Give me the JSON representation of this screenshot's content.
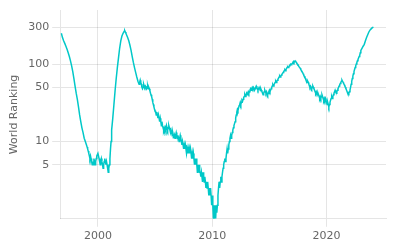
{
  "chart_data": {
    "type": "line",
    "ylabel": "World Ranking",
    "color": "#00C8C8",
    "log": "y",
    "grid": true,
    "xlim": [
      1996.7,
      2025.2
    ],
    "ylim": [
      1,
      500
    ],
    "xticks": [
      2000,
      2010,
      2020
    ],
    "yticks": [
      5,
      10,
      50,
      100,
      300
    ],
    "x": [
      1996.8,
      1996.9,
      1997.0,
      1997.1,
      1997.2,
      1997.3,
      1997.4,
      1997.5,
      1997.6,
      1997.7,
      1997.8,
      1997.9,
      1998.0,
      1998.1,
      1998.2,
      1998.3,
      1998.4,
      1998.5,
      1998.6,
      1998.7,
      1998.8,
      1998.9,
      1999.0,
      1999.05,
      1999.1,
      1999.15,
      1999.2,
      1999.25,
      1999.3,
      1999.35,
      1999.4,
      1999.45,
      1999.5,
      1999.55,
      1999.6,
      1999.65,
      1999.7,
      1999.75,
      1999.8,
      1999.85,
      1999.9,
      2000.0,
      2000.05,
      2000.1,
      2000.15,
      2000.2,
      2000.25,
      2000.3,
      2000.35,
      2000.4,
      2000.45,
      2000.5,
      2000.55,
      2000.6,
      2000.65,
      2000.7,
      2000.75,
      2000.8,
      2000.85,
      2000.9,
      2000.95,
      2001.0,
      2001.05,
      2001.1,
      2001.15,
      2001.2,
      2001.3,
      2001.4,
      2001.5,
      2001.6,
      2001.7,
      2001.8,
      2001.9,
      2002.0,
      2002.1,
      2002.2,
      2002.3,
      2002.35,
      2002.4,
      2002.45,
      2002.5,
      2002.6,
      2002.7,
      2002.8,
      2002.9,
      2003.0,
      2003.1,
      2003.2,
      2003.3,
      2003.4,
      2003.5,
      2003.6,
      2003.65,
      2003.7,
      2003.75,
      2003.8,
      2003.85,
      2003.9,
      2003.95,
      2004.0,
      2004.05,
      2004.1,
      2004.15,
      2004.2,
      2004.25,
      2004.3,
      2004.35,
      2004.4,
      2004.45,
      2004.5,
      2004.55,
      2004.6,
      2004.65,
      2004.7,
      2004.75,
      2004.8,
      2004.85,
      2004.9,
      2004.95,
      2005.0,
      2005.05,
      2005.1,
      2005.15,
      2005.2,
      2005.25,
      2005.3,
      2005.35,
      2005.4,
      2005.45,
      2005.5,
      2005.55,
      2005.6,
      2005.65,
      2005.7,
      2005.75,
      2005.8,
      2005.85,
      2005.9,
      2005.95,
      2006.0,
      2006.05,
      2006.1,
      2006.15,
      2006.2,
      2006.25,
      2006.3,
      2006.35,
      2006.4,
      2006.45,
      2006.5,
      2006.55,
      2006.6,
      2006.65,
      2006.7,
      2006.75,
      2006.8,
      2006.85,
      2006.9,
      2006.95,
      2007.0,
      2007.05,
      2007.1,
      2007.15,
      2007.2,
      2007.25,
      2007.3,
      2007.35,
      2007.4,
      2007.45,
      2007.5,
      2007.55,
      2007.6,
      2007.65,
      2007.7,
      2007.75,
      2007.8,
      2007.85,
      2007.9,
      2007.95,
      2008.0,
      2008.05,
      2008.1,
      2008.15,
      2008.2,
      2008.25,
      2008.3,
      2008.35,
      2008.4,
      2008.45,
      2008.5,
      2008.55,
      2008.6,
      2008.65,
      2008.7,
      2008.75,
      2008.8,
      2008.85,
      2008.9,
      2008.95,
      2009.0,
      2009.05,
      2009.1,
      2009.15,
      2009.2,
      2009.25,
      2009.3,
      2009.35,
      2009.4,
      2009.45,
      2009.5,
      2009.55,
      2009.6,
      2009.65,
      2009.7,
      2009.75,
      2009.8,
      2009.85,
      2009.9,
      2009.95,
      2010.0,
      2010.05,
      2010.1,
      2010.15,
      2010.2,
      2010.25,
      2010.3,
      2010.35,
      2010.4,
      2010.45,
      2010.5,
      2010.55,
      2010.6,
      2010.65,
      2010.7,
      2010.75,
      2010.8,
      2010.85,
      2010.9,
      2010.95,
      2011.0,
      2011.05,
      2011.1,
      2011.15,
      2011.2,
      2011.25,
      2011.3,
      2011.35,
      2011.4,
      2011.45,
      2011.5,
      2011.55,
      2011.6,
      2011.65,
      2011.7,
      2011.75,
      2011.8,
      2011.85,
      2011.9,
      2011.95,
      2012.0,
      2012.05,
      2012.1,
      2012.15,
      2012.2,
      2012.25,
      2012.3,
      2012.35,
      2012.4,
      2012.45,
      2012.5,
      2012.55,
      2012.6,
      2012.65,
      2012.7,
      2012.75,
      2012.8,
      2012.85,
      2012.9,
      2012.95,
      2013.0,
      2013.05,
      2013.1,
      2013.15,
      2013.2,
      2013.25,
      2013.3,
      2013.35,
      2013.4,
      2013.45,
      2013.5,
      2013.55,
      2013.6,
      2013.65,
      2013.7,
      2013.75,
      2013.8,
      2013.85,
      2013.9,
      2013.95,
      2014.0,
      2014.05,
      2014.1,
      2014.15,
      2014.2,
      2014.25,
      2014.3,
      2014.35,
      2014.4,
      2014.45,
      2014.5,
      2014.55,
      2014.6,
      2014.65,
      2014.7,
      2014.75,
      2014.8,
      2014.85,
      2014.9,
      2014.95,
      2015.0,
      2015.05,
      2015.1,
      2015.15,
      2015.2,
      2015.25,
      2015.3,
      2015.35,
      2015.4,
      2015.45,
      2015.5,
      2015.55,
      2015.6,
      2015.65,
      2015.7,
      2015.75,
      2015.8,
      2015.85,
      2015.9,
      2015.95,
      2016.0,
      2016.05,
      2016.1,
      2016.15,
      2016.2,
      2016.25,
      2016.3,
      2016.35,
      2016.4,
      2016.45,
      2016.5,
      2016.55,
      2016.6,
      2016.65,
      2016.7,
      2016.75,
      2016.8,
      2016.85,
      2016.9,
      2016.95,
      2017.0,
      2017.05,
      2017.1,
      2017.15,
      2017.2,
      2017.25,
      2017.3,
      2017.35,
      2017.4,
      2017.45,
      2017.5,
      2017.55,
      2017.6,
      2017.65,
      2017.7,
      2017.75,
      2017.8,
      2017.85,
      2017.9,
      2017.95,
      2018.0,
      2018.05,
      2018.1,
      2018.15,
      2018.2,
      2018.25,
      2018.3,
      2018.35,
      2018.4,
      2018.45,
      2018.5,
      2018.55,
      2018.6,
      2018.65,
      2018.7,
      2018.75,
      2018.8,
      2018.85,
      2018.9,
      2018.95,
      2019.0,
      2019.05,
      2019.1,
      2019.15,
      2019.2,
      2019.25,
      2019.3,
      2019.35,
      2019.4,
      2019.45,
      2019.5,
      2019.55,
      2019.6,
      2019.65,
      2019.7,
      2019.75,
      2019.8,
      2019.85,
      2019.9,
      2019.95,
      2020.0,
      2020.05,
      2020.1,
      2020.15,
      2020.2,
      2020.25,
      2020.3,
      2020.35,
      2020.4,
      2020.45,
      2020.5,
      2020.55,
      2020.6,
      2020.65,
      2020.7,
      2020.75,
      2020.8,
      2020.85,
      2020.9,
      2020.95,
      2021.0,
      2021.05,
      2021.1,
      2021.15,
      2021.2,
      2021.25,
      2021.3,
      2021.35,
      2021.4,
      2021.45,
      2021.5,
      2021.55,
      2021.6,
      2021.65,
      2021.7,
      2021.75,
      2021.8,
      2021.85,
      2021.9,
      2021.95,
      2022.0,
      2022.05,
      2022.1,
      2022.15,
      2022.2,
      2022.25,
      2022.3,
      2022.35,
      2022.4,
      2022.45,
      2022.5,
      2022.55,
      2022.6,
      2022.65,
      2022.7,
      2022.75,
      2022.8,
      2022.85,
      2022.9,
      2022.95,
      2023.0,
      2023.1,
      2023.2,
      2023.3,
      2023.4,
      2023.5,
      2023.6,
      2023.7,
      2023.8,
      2023.9,
      2024.0,
      2024.1
    ],
    "values": [
      250,
      220,
      200,
      185,
      170,
      155,
      140,
      125,
      110,
      95,
      80,
      65,
      52,
      42,
      35,
      28,
      22,
      18,
      15,
      13,
      11,
      10,
      9,
      8.5,
      8,
      7.5,
      7,
      6.5,
      6,
      6.5,
      6,
      5.5,
      5,
      5.5,
      5,
      6,
      5.5,
      5,
      5.5,
      6,
      6.5,
      7,
      6.5,
      6,
      5.5,
      5,
      5.5,
      6,
      5.5,
      5,
      4.5,
      5,
      5.5,
      6,
      5.5,
      5,
      5.5,
      5,
      4.5,
      4,
      4.5,
      5,
      6,
      8,
      10,
      14,
      20,
      30,
      45,
      65,
      90,
      120,
      160,
      200,
      230,
      250,
      265,
      270,
      260,
      250,
      240,
      220,
      200,
      175,
      150,
      125,
      105,
      90,
      78,
      68,
      60,
      55,
      58,
      62,
      58,
      55,
      50,
      48,
      50,
      55,
      52,
      50,
      52,
      50,
      48,
      50,
      52,
      48,
      50,
      48,
      45,
      42,
      40,
      38,
      35,
      32,
      30,
      28,
      26,
      25,
      24,
      22,
      24,
      22,
      20,
      22,
      20,
      18,
      20,
      18,
      16,
      18,
      16,
      15,
      14,
      15,
      14,
      15,
      14,
      16,
      15,
      14,
      15,
      16,
      15,
      14,
      13,
      14,
      13,
      12,
      13,
      12,
      11,
      12,
      11,
      12,
      13,
      12,
      11,
      12,
      11,
      10,
      11,
      12,
      11,
      10,
      9,
      10,
      9,
      8,
      9,
      8,
      9,
      8,
      7,
      8,
      7,
      8,
      7,
      8,
      7,
      8,
      7,
      6,
      7,
      6,
      7,
      6,
      5,
      6,
      5,
      6,
      5,
      4,
      5,
      4,
      5,
      4,
      4,
      3.5,
      4,
      3.5,
      3,
      4,
      3.5,
      3,
      3.5,
      3,
      2.5,
      3,
      2.5,
      3,
      2.5,
      2,
      2.5,
      2,
      2.5,
      2,
      1.5,
      2,
      1.5,
      1,
      1.5,
      1,
      1.5,
      1,
      1.5,
      1.2,
      1.5,
      2,
      2.5,
      3,
      2.5,
      3,
      3.5,
      3,
      3.5,
      4,
      4.5,
      5,
      5.5,
      6,
      5.5,
      6,
      7,
      8,
      7,
      8,
      9,
      10,
      11,
      12,
      11,
      12,
      13,
      14,
      15,
      16,
      17,
      18,
      20,
      22,
      24,
      26,
      25,
      27,
      29,
      30,
      32,
      30,
      32,
      34,
      33,
      35,
      37,
      38,
      40,
      38,
      40,
      42,
      40,
      42,
      44,
      42,
      44,
      46,
      48,
      46,
      48,
      50,
      48,
      50,
      48,
      46,
      48,
      50,
      52,
      50,
      48,
      46,
      48,
      50,
      48,
      46,
      48,
      46,
      44,
      42,
      40,
      42,
      44,
      46,
      44,
      42,
      44,
      42,
      40,
      42,
      44,
      46,
      44,
      46,
      48,
      50,
      52,
      54,
      52,
      54,
      56,
      58,
      60,
      58,
      60,
      62,
      64,
      66,
      68,
      70,
      68,
      70,
      72,
      74,
      76,
      78,
      80,
      82,
      84,
      82,
      85,
      88,
      90,
      92,
      90,
      92,
      95,
      98,
      100,
      98,
      100,
      102,
      105,
      108,
      105,
      108,
      110,
      108,
      105,
      102,
      100,
      98,
      95,
      92,
      90,
      88,
      85,
      82,
      80,
      78,
      75,
      72,
      70,
      68,
      65,
      62,
      60,
      58,
      60,
      58,
      55,
      52,
      50,
      52,
      50,
      48,
      50,
      52,
      50,
      48,
      46,
      44,
      42,
      44,
      42,
      40,
      42,
      40,
      38,
      36,
      38,
      36,
      38,
      40,
      38,
      36,
      34,
      36,
      34,
      36,
      34,
      32,
      30,
      32,
      30,
      28,
      30,
      32,
      34,
      36,
      38,
      36,
      38,
      40,
      42,
      44,
      46,
      44,
      42,
      44,
      46,
      48,
      50,
      52,
      54,
      56,
      58,
      60,
      62,
      60,
      58,
      56,
      54,
      52,
      50,
      48,
      46,
      44,
      42,
      40,
      42,
      44,
      46,
      50,
      55,
      60,
      65,
      70,
      75,
      80,
      85,
      90,
      95,
      100,
      105,
      110,
      115,
      120,
      125,
      130,
      140,
      150,
      160,
      170,
      180,
      200,
      220,
      240,
      260,
      275,
      285,
      295,
      300
    ]
  }
}
